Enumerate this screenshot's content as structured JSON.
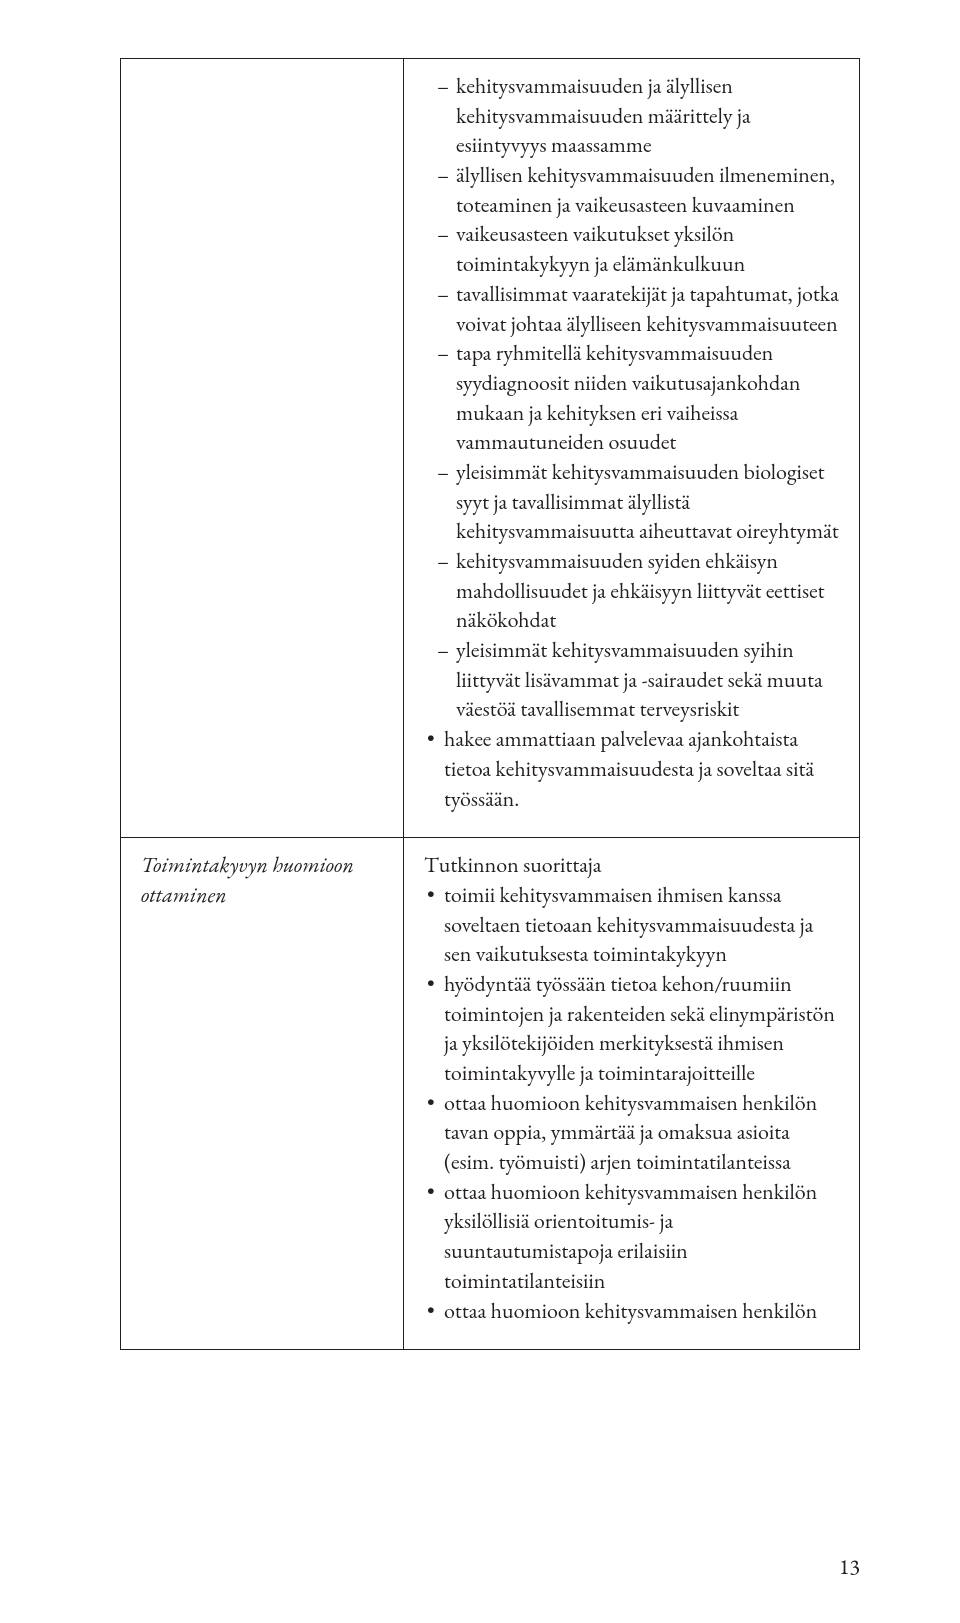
{
  "page_number": "13",
  "colors": {
    "text": "#231f20",
    "border": "#231f20",
    "background": "#ffffff"
  },
  "typography": {
    "body_fontsize_pt": 12,
    "family": "Adobe Garamond / serif",
    "italic_headings": true
  },
  "table": {
    "rows": [
      {
        "left": "",
        "right": {
          "dash_items": [
            "kehitysvammaisuuden ja älyllisen kehitysvammaisuuden määrittely ja esiintyvyys maassamme",
            "älyllisen kehitysvammaisuuden ilmeneminen, toteaminen ja vaikeusasteen kuvaaminen",
            "vaikeusasteen vaikutukset yksilön toimintakykyyn ja elämänkulkuun",
            "tavallisimmat vaaratekijät ja tapahtumat, jotka voivat johtaa älylliseen kehitysvammaisuuteen",
            "tapa ryhmitellä kehitysvammaisuuden syydiagnoosit niiden vaikutusajankohdan mukaan ja kehityksen eri vaiheissa vammautuneiden osuudet",
            "yleisimmät kehitysvammaisuuden biologiset syyt ja tavallisimmat älyllistä kehitysvammaisuutta aiheuttavat oireyhtymät",
            "kehitysvammaisuuden syiden ehkäisyn mahdollisuudet ja ehkäisyyn liittyvät eettiset näkökohdat",
            "yleisimmät kehitysvammaisuuden syihin liittyvät lisävammat ja -sairaudet sekä muuta väestöä tavallisemmat terveysriskit"
          ],
          "bullet_items": [
            "hakee ammattiaan palvelevaa ajankohtaista tietoa kehitysvammaisuudesta ja soveltaa sitä työssään."
          ]
        }
      },
      {
        "left": "Toimintakyvyn huomioon ottaminen",
        "right": {
          "intro": "Tutkinnon suorittaja",
          "bullet_items": [
            "toimii kehitysvammaisen ihmisen kanssa soveltaen tietoaan kehitysvammaisuudesta ja sen vaikutuksesta toimintakykyyn",
            "hyödyntää työssään tietoa kehon/ruumiin toimintojen ja rakenteiden sekä elinympäristön ja yksilötekijöiden merkityksestä ihmisen toimintakyvylle ja toimintarajoitteille",
            "ottaa huomioon kehitysvammaisen henkilön tavan oppia, ymmärtää ja omaksua asioita (esim. työmuisti) arjen toimintatilanteissa",
            "ottaa huomioon kehitysvammaisen henkilön yksilöllisiä orientoitumis- ja suuntautumistapoja erilaisiin toimintatilanteisiin",
            "ottaa huomioon kehitysvammaisen henkilön"
          ]
        }
      }
    ]
  }
}
